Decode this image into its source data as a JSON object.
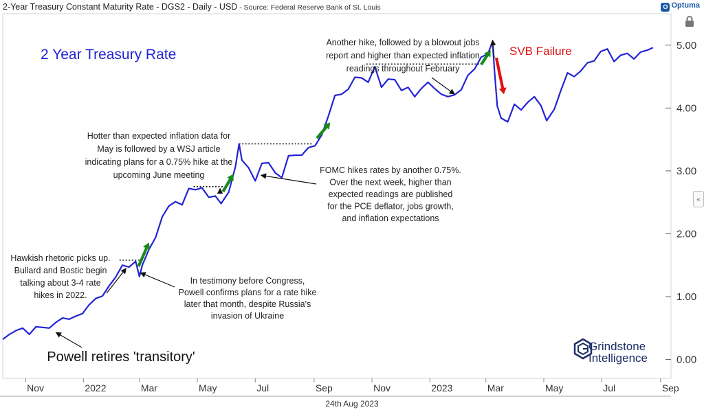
{
  "header": {
    "title": "2-Year Treasury Constant Maturity Rate - DGS2 - Daily - USD",
    "source": " - Source: Federal Reserve Bank of St. Louis",
    "brand": "Optuma"
  },
  "footer": {
    "date": "24th Aug 2023"
  },
  "logo": {
    "line1": "Grindstone",
    "line2": "Intelligence"
  },
  "colors": {
    "series": "#2323d6",
    "up_arrow": "#1a8a1a",
    "down_arrow": "#e01010",
    "svb": "#e01010"
  },
  "chart_data": {
    "type": "line",
    "title": "2 Year Treasury Rate",
    "xlabel": "",
    "ylabel": "",
    "ylim": [
      -0.3,
      5.5
    ],
    "xlim": [
      "2021-10-08",
      "2023-09-12"
    ],
    "y_ticks": [
      "0.00",
      "1.00",
      "2.00",
      "3.00",
      "4.00",
      "5.00"
    ],
    "x_ticks": [
      {
        "label": "Nov",
        "date": "2021-11-01"
      },
      {
        "label": "2022",
        "date": "2022-01-01"
      },
      {
        "label": "Mar",
        "date": "2022-03-01"
      },
      {
        "label": "May",
        "date": "2022-05-01"
      },
      {
        "label": "Jul",
        "date": "2022-07-01"
      },
      {
        "label": "Sep",
        "date": "2022-09-01"
      },
      {
        "label": "Nov",
        "date": "2022-11-01"
      },
      {
        "label": "2023",
        "date": "2023-01-01"
      },
      {
        "label": "Mar",
        "date": "2023-03-01"
      },
      {
        "label": "May",
        "date": "2023-05-01"
      },
      {
        "label": "Jul",
        "date": "2023-07-01"
      },
      {
        "label": "Sep",
        "date": "2023-09-01"
      }
    ],
    "series": [
      {
        "values": [
          [
            "2021-10-08",
            0.32
          ],
          [
            "2021-10-15",
            0.4
          ],
          [
            "2021-10-22",
            0.46
          ],
          [
            "2021-10-29",
            0.5
          ],
          [
            "2021-11-05",
            0.4
          ],
          [
            "2021-11-12",
            0.52
          ],
          [
            "2021-11-19",
            0.51
          ],
          [
            "2021-11-26",
            0.5
          ],
          [
            "2021-12-03",
            0.59
          ],
          [
            "2021-12-10",
            0.66
          ],
          [
            "2021-12-17",
            0.64
          ],
          [
            "2021-12-24",
            0.69
          ],
          [
            "2021-12-31",
            0.73
          ],
          [
            "2022-01-07",
            0.87
          ],
          [
            "2022-01-14",
            0.97
          ],
          [
            "2022-01-21",
            1.01
          ],
          [
            "2022-01-28",
            1.17
          ],
          [
            "2022-02-04",
            1.31
          ],
          [
            "2022-02-11",
            1.5
          ],
          [
            "2022-02-18",
            1.47
          ],
          [
            "2022-02-25",
            1.56
          ],
          [
            "2022-03-01",
            1.32
          ],
          [
            "2022-03-04",
            1.5
          ],
          [
            "2022-03-11",
            1.75
          ],
          [
            "2022-03-18",
            1.94
          ],
          [
            "2022-03-25",
            2.27
          ],
          [
            "2022-04-01",
            2.44
          ],
          [
            "2022-04-08",
            2.51
          ],
          [
            "2022-04-15",
            2.46
          ],
          [
            "2022-04-22",
            2.72
          ],
          [
            "2022-04-29",
            2.7
          ],
          [
            "2022-05-06",
            2.73
          ],
          [
            "2022-05-13",
            2.58
          ],
          [
            "2022-05-20",
            2.6
          ],
          [
            "2022-05-26",
            2.48
          ],
          [
            "2022-06-03",
            2.66
          ],
          [
            "2022-06-10",
            3.06
          ],
          [
            "2022-06-14",
            3.43
          ],
          [
            "2022-06-17",
            3.17
          ],
          [
            "2022-06-24",
            3.05
          ],
          [
            "2022-07-01",
            2.84
          ],
          [
            "2022-07-08",
            3.12
          ],
          [
            "2022-07-15",
            3.13
          ],
          [
            "2022-07-22",
            2.97
          ],
          [
            "2022-07-29",
            2.89
          ],
          [
            "2022-08-05",
            3.24
          ],
          [
            "2022-08-12",
            3.25
          ],
          [
            "2022-08-19",
            3.25
          ],
          [
            "2022-08-26",
            3.37
          ],
          [
            "2022-09-02",
            3.4
          ],
          [
            "2022-09-09",
            3.57
          ],
          [
            "2022-09-16",
            3.87
          ],
          [
            "2022-09-23",
            4.2
          ],
          [
            "2022-09-30",
            4.22
          ],
          [
            "2022-10-07",
            4.3
          ],
          [
            "2022-10-14",
            4.49
          ],
          [
            "2022-10-21",
            4.48
          ],
          [
            "2022-10-28",
            4.41
          ],
          [
            "2022-11-04",
            4.66
          ],
          [
            "2022-11-11",
            4.33
          ],
          [
            "2022-11-18",
            4.46
          ],
          [
            "2022-11-25",
            4.45
          ],
          [
            "2022-12-02",
            4.28
          ],
          [
            "2022-12-09",
            4.33
          ],
          [
            "2022-12-16",
            4.18
          ],
          [
            "2022-12-23",
            4.31
          ],
          [
            "2022-12-30",
            4.41
          ],
          [
            "2023-01-06",
            4.31
          ],
          [
            "2023-01-13",
            4.22
          ],
          [
            "2023-01-20",
            4.18
          ],
          [
            "2023-01-27",
            4.21
          ],
          [
            "2023-02-03",
            4.29
          ],
          [
            "2023-02-10",
            4.52
          ],
          [
            "2023-02-17",
            4.62
          ],
          [
            "2023-02-24",
            4.81
          ],
          [
            "2023-03-03",
            4.86
          ],
          [
            "2023-03-08",
            5.05
          ],
          [
            "2023-03-10",
            4.6
          ],
          [
            "2023-03-13",
            4.03
          ],
          [
            "2023-03-17",
            3.84
          ],
          [
            "2023-03-24",
            3.78
          ],
          [
            "2023-03-31",
            4.06
          ],
          [
            "2023-04-07",
            3.97
          ],
          [
            "2023-04-14",
            4.09
          ],
          [
            "2023-04-21",
            4.18
          ],
          [
            "2023-04-28",
            4.04
          ],
          [
            "2023-05-04",
            3.8
          ],
          [
            "2023-05-12",
            3.98
          ],
          [
            "2023-05-19",
            4.28
          ],
          [
            "2023-05-26",
            4.56
          ],
          [
            "2023-06-02",
            4.5
          ],
          [
            "2023-06-09",
            4.59
          ],
          [
            "2023-06-16",
            4.72
          ],
          [
            "2023-06-23",
            4.75
          ],
          [
            "2023-06-30",
            4.9
          ],
          [
            "2023-07-07",
            4.94
          ],
          [
            "2023-07-14",
            4.74
          ],
          [
            "2023-07-21",
            4.84
          ],
          [
            "2023-07-28",
            4.87
          ],
          [
            "2023-08-04",
            4.78
          ],
          [
            "2023-08-11",
            4.89
          ],
          [
            "2023-08-18",
            4.92
          ],
          [
            "2023-08-24",
            4.96
          ]
        ]
      }
    ],
    "annotations": [
      {
        "id": "powell-transitory",
        "lines": [
          "Powell retires 'transitory'"
        ]
      },
      {
        "id": "hawkish",
        "lines": [
          "Hawkish rhetoric picks up.",
          "Bullard and Bostic begin",
          "talking about 3-4 rate",
          "hikes in 2022."
        ]
      },
      {
        "id": "testimony",
        "lines": [
          "In testimony before Congress,",
          "Powell confirms plans for a rate hike",
          "later that month, despite Russia's",
          "invasion of Ukraine"
        ]
      },
      {
        "id": "hotter",
        "lines": [
          "Hotter than expected inflation data for",
          "May is followed by a WSJ article",
          "indicating plans for a 0.75% hike at the",
          "upcoming June meeting"
        ]
      },
      {
        "id": "fomc",
        "lines": [
          "FOMC hikes rates by another 0.75%.",
          "Over the next week, higher than",
          "expected readings are published",
          "for the PCE deflator, jobs growth,",
          "and inflation expectations"
        ]
      },
      {
        "id": "another-hike",
        "lines": [
          "Another hike, followed by a blowout jobs",
          "report and higher than expected inflation",
          "readings throughout February"
        ]
      },
      {
        "id": "svb",
        "lines": [
          "SVB Failure"
        ]
      }
    ]
  }
}
